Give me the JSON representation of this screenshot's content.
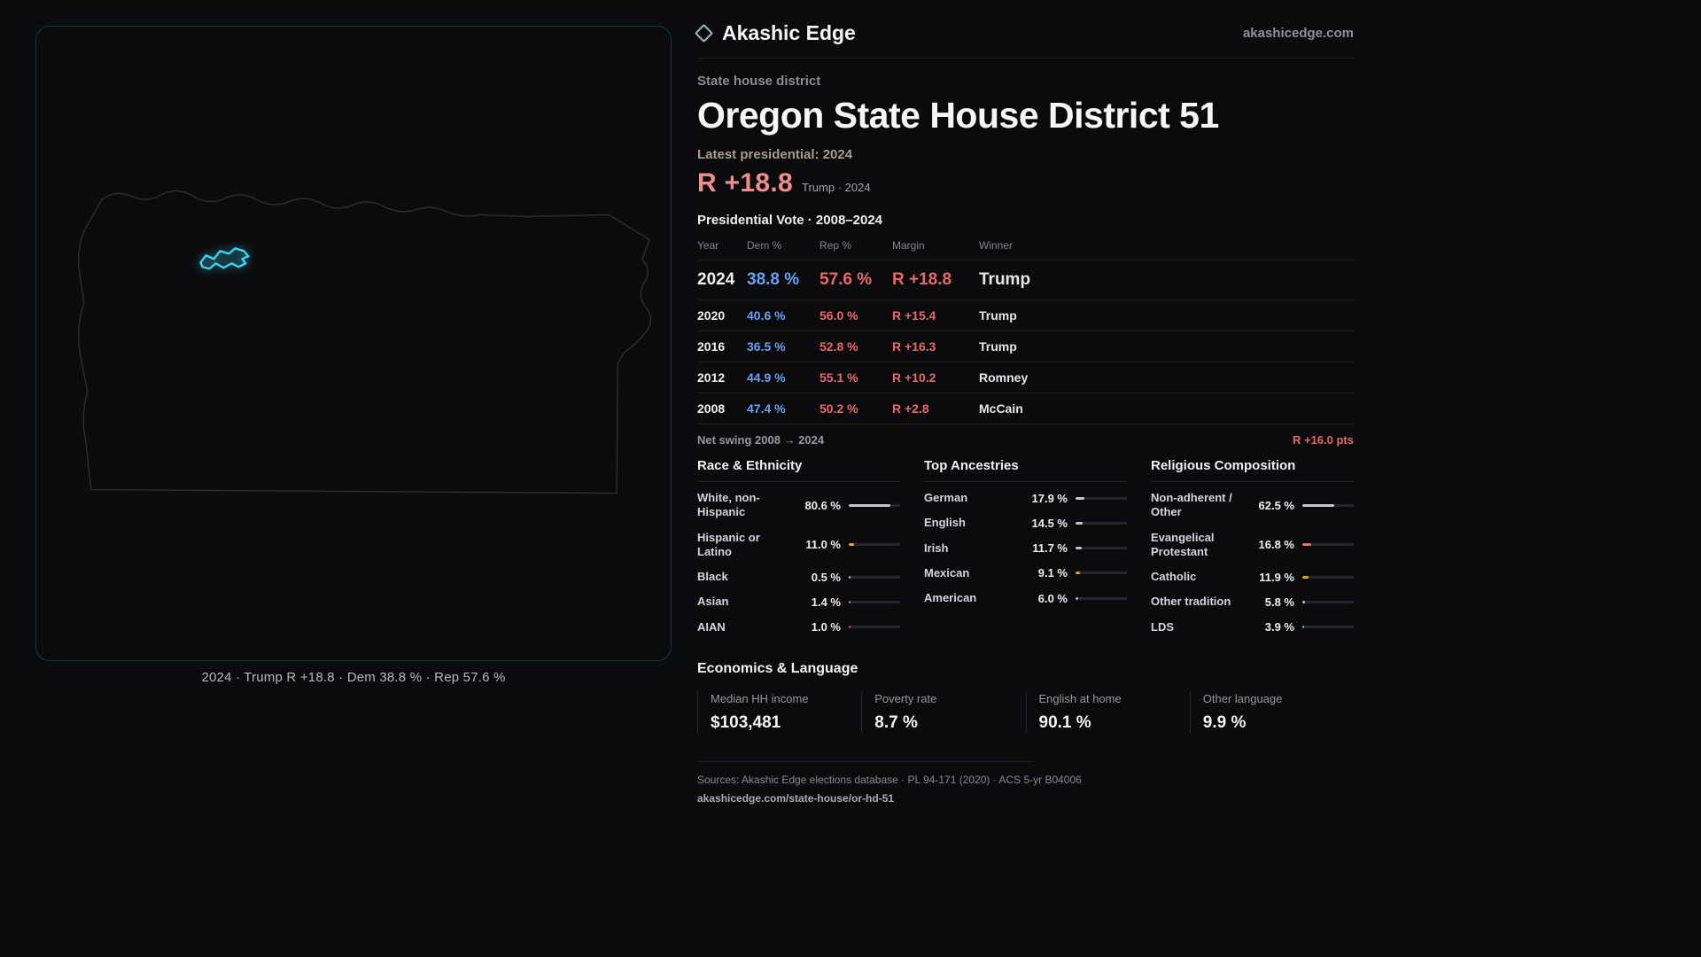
{
  "theme": {
    "background": "#0b0b0d",
    "accent_cyan": "#3fd0ec",
    "dem_blue": "#6ba1ef",
    "rep_red": "#e56a6a"
  },
  "brand": {
    "name": "Akashic Edge",
    "domain": "akashicedge.com",
    "logo": "diamond-icon"
  },
  "page": {
    "district_type_label": "State house district",
    "title": "Oregon State House District 51"
  },
  "map": {
    "caption": "2024 · Trump R +18.8 · Dem 38.8 % · Rep 57.6 %",
    "highlight_color": "#3fd0ec"
  },
  "latest": {
    "label": "Latest presidential: 2024",
    "value": "R +18.8",
    "detail": "Trump · 2024"
  },
  "vote_table": {
    "title": "Presidential Vote · 2008–2024",
    "columns": [
      "Year",
      "Dem %",
      "Rep %",
      "Margin",
      "Winner"
    ],
    "rows": [
      {
        "year": "2024",
        "dem": "38.8 %",
        "rep": "57.6 %",
        "margin": "R +18.8",
        "winner": "Trump",
        "emphasis": true
      },
      {
        "year": "2020",
        "dem": "40.6 %",
        "rep": "56.0 %",
        "margin": "R +15.4",
        "winner": "Trump",
        "emphasis": false
      },
      {
        "year": "2016",
        "dem": "36.5 %",
        "rep": "52.8 %",
        "margin": "R +16.3",
        "winner": "Trump",
        "emphasis": false
      },
      {
        "year": "2012",
        "dem": "44.9 %",
        "rep": "55.1 %",
        "margin": "R +10.2",
        "winner": "Romney",
        "emphasis": false
      },
      {
        "year": "2008",
        "dem": "47.4 %",
        "rep": "50.2 %",
        "margin": "R +2.8",
        "winner": "McCain",
        "emphasis": false
      }
    ]
  },
  "net_swing": {
    "label": "Net swing 2008 → 2024",
    "value": "R +16.0 pts"
  },
  "demographics": [
    {
      "title": "Race & Ethnicity",
      "items": [
        {
          "label": "White, non-Hispanic",
          "value": "80.6 %",
          "pct": 80.6,
          "color": "#c3c6cf"
        },
        {
          "label": "Hispanic or Latino",
          "value": "11.0 %",
          "pct": 11.0,
          "color": "#dfa43e"
        },
        {
          "label": "Black",
          "value": "0.5 %",
          "pct": 0.5,
          "color": "#c3c6cf"
        },
        {
          "label": "Asian",
          "value": "1.4 %",
          "pct": 1.4,
          "color": "#57b58a"
        },
        {
          "label": "AIAN",
          "value": "1.0 %",
          "pct": 1.0,
          "color": "#c2574d"
        }
      ]
    },
    {
      "title": "Top Ancestries",
      "items": [
        {
          "label": "German",
          "value": "17.9 %",
          "pct": 17.9,
          "color": "#c3c6cf"
        },
        {
          "label": "English",
          "value": "14.5 %",
          "pct": 14.5,
          "color": "#c3c6cf"
        },
        {
          "label": "Irish",
          "value": "11.7 %",
          "pct": 11.7,
          "color": "#c3c6cf"
        },
        {
          "label": "Mexican",
          "value": "9.1 %",
          "pct": 9.1,
          "color": "#dfa43e"
        },
        {
          "label": "American",
          "value": "6.0 %",
          "pct": 6.0,
          "color": "#aeb3c4"
        }
      ]
    },
    {
      "title": "Religious Composition",
      "items": [
        {
          "label": "Non-adherent / Other",
          "value": "62.5 %",
          "pct": 62.5,
          "color": "#c3c6cf"
        },
        {
          "label": "Evangelical Protestant",
          "value": "16.8 %",
          "pct": 16.8,
          "color": "#e2726d"
        },
        {
          "label": "Catholic",
          "value": "11.9 %",
          "pct": 11.9,
          "color": "#dfa43e"
        },
        {
          "label": "Other tradition",
          "value": "5.8 %",
          "pct": 5.8,
          "color": "#c3c6cf"
        },
        {
          "label": "LDS",
          "value": "3.9 %",
          "pct": 3.9,
          "color": "#45c9e6"
        }
      ]
    }
  ],
  "economics": {
    "title": "Economics & Language",
    "stats": [
      {
        "label": "Median HH income",
        "value": "$103,481"
      },
      {
        "label": "Poverty rate",
        "value": "8.7 %"
      },
      {
        "label": "English at home",
        "value": "90.1 %"
      },
      {
        "label": "Other language",
        "value": "9.9 %"
      }
    ]
  },
  "footer": {
    "sources": "Sources: Akashic Edge elections database · PL 94-171 (2020) · ACS 5-yr B04006",
    "permalink": "akashicedge.com/state-house/or-hd-51"
  },
  "chart_data": [
    {
      "type": "table",
      "title": "Presidential Vote · 2008–2024",
      "columns": [
        "Year",
        "Dem %",
        "Rep %",
        "Margin",
        "Winner"
      ],
      "rows": [
        [
          2024,
          38.8,
          57.6,
          "R +18.8",
          "Trump"
        ],
        [
          2020,
          40.6,
          56.0,
          "R +15.4",
          "Trump"
        ],
        [
          2016,
          36.5,
          52.8,
          "R +16.3",
          "Trump"
        ],
        [
          2012,
          44.9,
          55.1,
          "R +10.2",
          "Romney"
        ],
        [
          2008,
          47.4,
          50.2,
          "R +2.8",
          "McCain"
        ]
      ]
    },
    {
      "type": "bar",
      "title": "Race & Ethnicity",
      "categories": [
        "White, non-Hispanic",
        "Hispanic or Latino",
        "Black",
        "Asian",
        "AIAN"
      ],
      "values": [
        80.6,
        11.0,
        0.5,
        1.4,
        1.0
      ],
      "unit": "%"
    },
    {
      "type": "bar",
      "title": "Top Ancestries",
      "categories": [
        "German",
        "English",
        "Irish",
        "Mexican",
        "American"
      ],
      "values": [
        17.9,
        14.5,
        11.7,
        9.1,
        6.0
      ],
      "unit": "%"
    },
    {
      "type": "bar",
      "title": "Religious Composition",
      "categories": [
        "Non-adherent / Other",
        "Evangelical Protestant",
        "Catholic",
        "Other tradition",
        "LDS"
      ],
      "values": [
        62.5,
        16.8,
        11.9,
        5.8,
        3.9
      ],
      "unit": "%"
    }
  ]
}
